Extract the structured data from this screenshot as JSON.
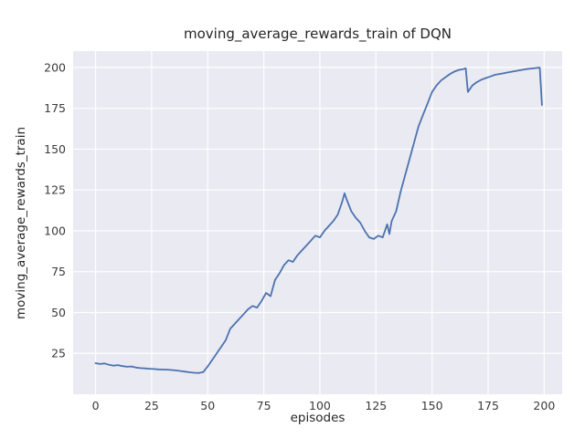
{
  "chart_data": {
    "type": "line",
    "title": "moving_average_rewards_train of DQN",
    "xlabel": "episodes",
    "ylabel": "moving_average_rewards_train",
    "xlim": [
      -10,
      208
    ],
    "ylim": [
      0,
      210
    ],
    "xticks": [
      0,
      25,
      50,
      75,
      100,
      125,
      150,
      175,
      200
    ],
    "yticks": [
      25,
      50,
      75,
      100,
      125,
      150,
      175,
      200
    ],
    "grid": true,
    "legend": "none",
    "line_color": "#4c72b0",
    "background": "#eaeaf2",
    "grid_color": "#ffffff",
    "tick_color": "#3a3a3a",
    "series": [
      {
        "name": "moving_average_rewards_train",
        "x": [
          0,
          2,
          4,
          6,
          8,
          10,
          12,
          14,
          16,
          18,
          20,
          22,
          24,
          26,
          28,
          30,
          32,
          34,
          36,
          38,
          40,
          42,
          44,
          46,
          48,
          50,
          52,
          54,
          56,
          58,
          60,
          62,
          64,
          66,
          68,
          70,
          72,
          74,
          76,
          78,
          80,
          82,
          84,
          86,
          88,
          90,
          92,
          94,
          96,
          98,
          100,
          102,
          104,
          106,
          108,
          110,
          111,
          112,
          114,
          116,
          118,
          120,
          122,
          124,
          126,
          128,
          130,
          131,
          132,
          134,
          136,
          138,
          140,
          142,
          144,
          146,
          148,
          150,
          152,
          154,
          156,
          158,
          160,
          162,
          164,
          165,
          166,
          168,
          170,
          172,
          174,
          176,
          178,
          180,
          182,
          184,
          186,
          188,
          190,
          192,
          194,
          196,
          197,
          198,
          199
        ],
        "y": [
          19,
          18.5,
          18.8,
          18,
          17.5,
          17.8,
          17.2,
          16.8,
          17,
          16.3,
          16,
          15.8,
          15.6,
          15.4,
          15.2,
          15.1,
          15,
          14.8,
          14.5,
          14.2,
          13.8,
          13.4,
          13.1,
          13,
          13.5,
          17,
          21,
          25,
          29,
          33,
          40,
          43,
          46,
          49,
          52,
          54,
          53,
          57,
          62,
          60,
          70,
          74,
          79,
          82,
          81,
          85,
          88,
          91,
          94,
          97,
          96,
          100,
          103,
          106,
          110,
          118,
          123,
          119,
          112,
          108,
          105,
          100,
          96,
          95,
          97,
          96,
          104,
          98,
          106,
          112,
          124,
          134,
          144,
          154,
          164,
          171,
          178,
          185,
          189,
          192,
          194,
          196,
          197.5,
          198.5,
          199,
          199.5,
          185,
          189,
          191,
          192.5,
          193.5,
          194.5,
          195.5,
          196,
          196.5,
          197,
          197.5,
          198,
          198.5,
          199,
          199.3,
          199.6,
          199.8,
          199.9,
          177
        ]
      }
    ]
  }
}
